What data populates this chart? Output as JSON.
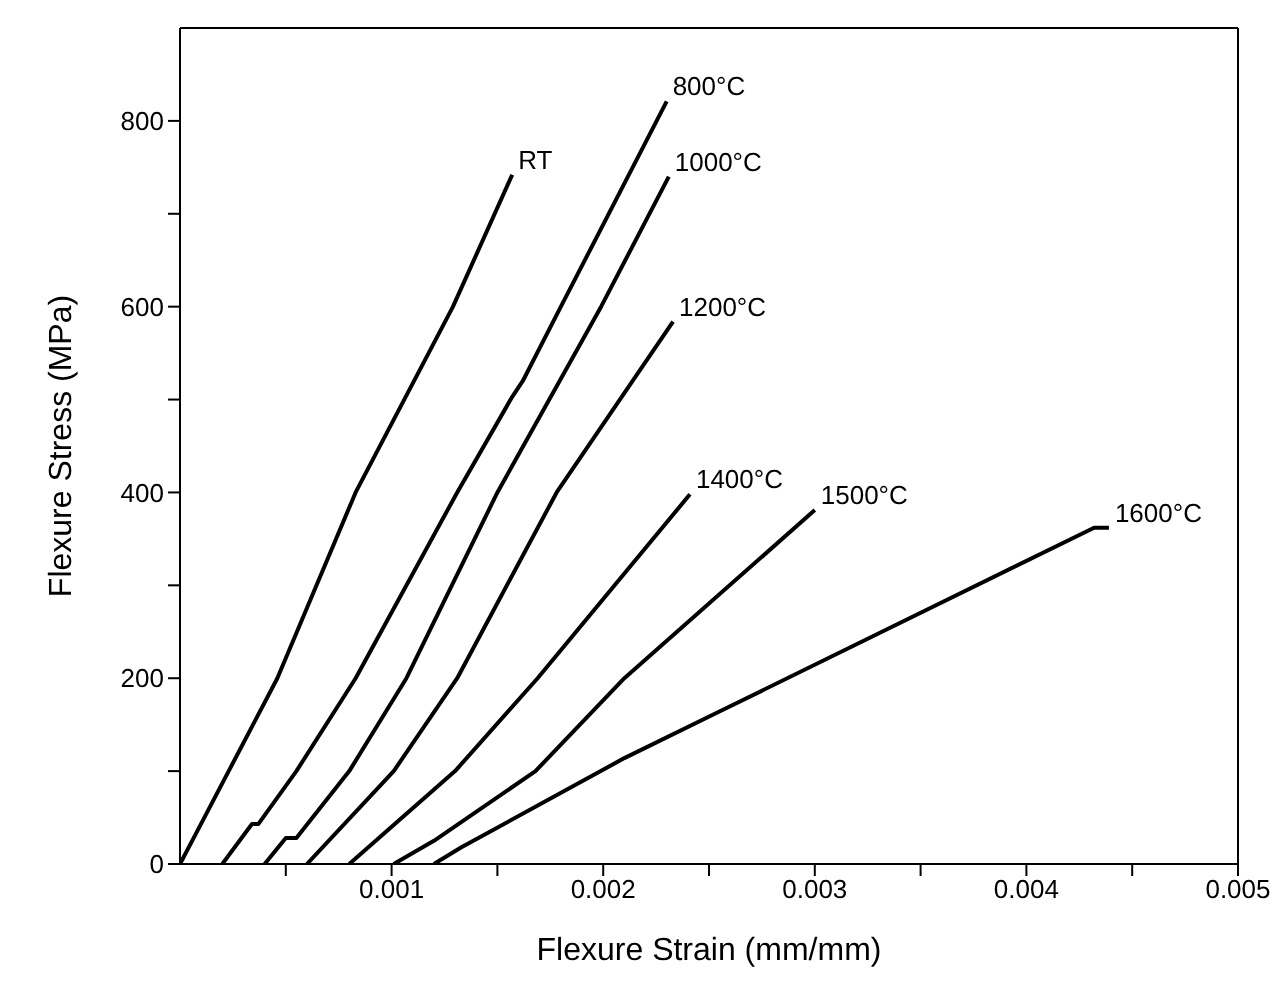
{
  "chart_data": {
    "type": "line",
    "xlabel": "Flexure Strain (mm/mm)",
    "ylabel": "Flexure Stress (MPa)",
    "xlim": [
      0,
      0.005
    ],
    "ylim": [
      0,
      900
    ],
    "xticks": [
      {
        "value": 0.0005,
        "label": null
      },
      0.001,
      {
        "value": 0.0015,
        "label": null
      },
      0.002,
      {
        "value": 0.0025,
        "label": null
      },
      0.003,
      {
        "value": 0.0035,
        "label": null
      },
      0.004,
      {
        "value": 0.0045,
        "label": null
      },
      0.005
    ],
    "yticks": [
      0,
      {
        "value": 100,
        "label": null
      },
      200,
      {
        "value": 300,
        "label": null
      },
      400,
      {
        "value": 500,
        "label": null
      },
      600,
      {
        "value": 700,
        "label": null
      },
      800
    ],
    "legend": false,
    "marker": "none",
    "line_style": "solid",
    "series": [
      {
        "name": "RT",
        "color": "#000000",
        "x": [
          0,
          0.00023,
          0.00046,
          0.00083,
          0.00129,
          0.00157
        ],
        "values": [
          0,
          100,
          200,
          400,
          600,
          742
        ]
      },
      {
        "name": "800°C",
        "color": "#000000",
        "x": [
          0.0002,
          0.00034,
          0.00037,
          0.00055,
          0.00083,
          0.00131,
          0.00157,
          0.00162,
          0.0018,
          0.0023
        ],
        "values": [
          0,
          43,
          43,
          100,
          200,
          400,
          503,
          520,
          600,
          821
        ]
      },
      {
        "name": "1000°C",
        "color": "#000000",
        "x": [
          0.0004,
          0.0005,
          0.00055,
          0.0008,
          0.00107,
          0.0015,
          0.00199,
          0.00231
        ],
        "values": [
          0,
          28,
          28,
          100,
          200,
          400,
          600,
          740
        ]
      },
      {
        "name": "1200°C",
        "color": "#000000",
        "x": [
          0.0006,
          0.00101,
          0.00131,
          0.00178,
          0.00233
        ],
        "values": [
          0,
          100,
          200,
          400,
          584
        ]
      },
      {
        "name": "1400°C",
        "color": "#000000",
        "x": [
          0.0008,
          0.0013,
          0.00169,
          0.00241
        ],
        "values": [
          0,
          100,
          200,
          398
        ]
      },
      {
        "name": "1500°C",
        "color": "#000000",
        "x": [
          0.00101,
          0.0012,
          0.00168,
          0.0021,
          0.003
        ],
        "values": [
          0,
          25,
          100,
          200,
          381
        ]
      },
      {
        "name": "1600°C",
        "color": "#000000",
        "x": [
          0.0012,
          0.00133,
          0.0021,
          0.00253,
          0.00432,
          0.00439
        ],
        "values": [
          0,
          18,
          114,
          162,
          362,
          362
        ]
      }
    ]
  }
}
